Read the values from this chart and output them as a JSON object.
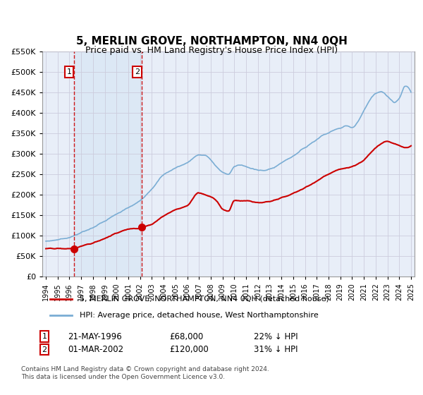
{
  "title": "5, MERLIN GROVE, NORTHAMPTON, NN4 0QH",
  "subtitle": "Price paid vs. HM Land Registry's House Price Index (HPI)",
  "ylim": [
    0,
    550000
  ],
  "yticks": [
    0,
    50000,
    100000,
    150000,
    200000,
    250000,
    300000,
    350000,
    400000,
    450000,
    500000,
    550000
  ],
  "xlim_start": 1993.7,
  "xlim_end": 2025.3,
  "sale1_date": 1996.38,
  "sale1_price": 68000,
  "sale2_date": 2002.16,
  "sale2_price": 120000,
  "hpi_color": "#7aadd4",
  "price_color": "#cc0000",
  "shade_color": "#dce8f5",
  "grid_color": "#ccccdd",
  "background_plot": "#e8eef8",
  "legend_label_price": "5, MERLIN GROVE, NORTHAMPTON, NN4 0QH (detached house)",
  "legend_label_hpi": "HPI: Average price, detached house, West Northamptonshire",
  "note1_date": "21-MAY-1996",
  "note1_price": "£68,000",
  "note1_hpi": "22% ↓ HPI",
  "note2_date": "01-MAR-2002",
  "note2_price": "£120,000",
  "note2_hpi": "31% ↓ HPI",
  "footer": "Contains HM Land Registry data © Crown copyright and database right 2024.\nThis data is licensed under the Open Government Licence v3.0."
}
